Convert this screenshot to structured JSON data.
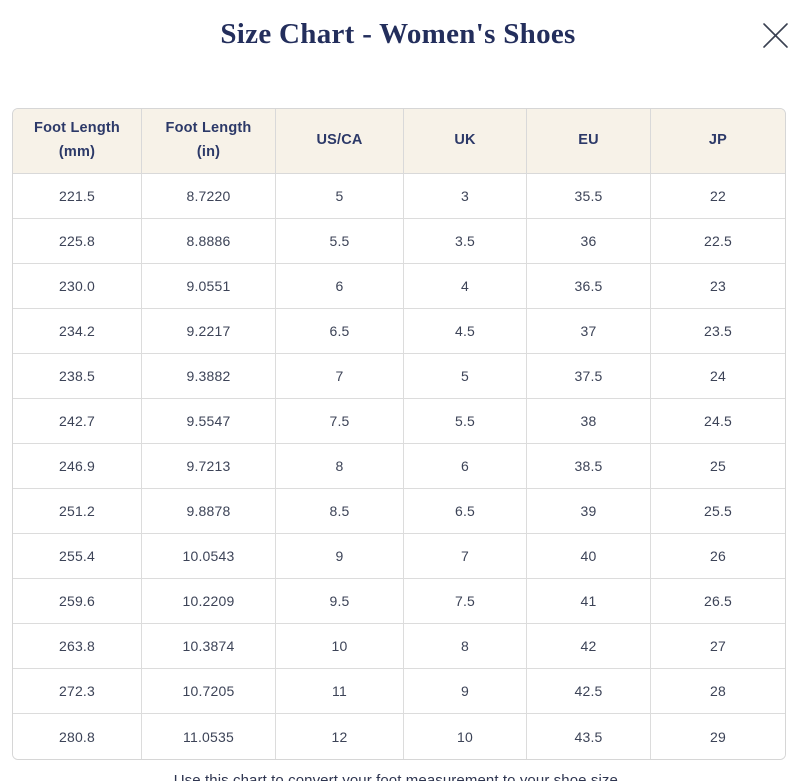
{
  "dialog": {
    "title": "Size Chart - Women's Shoes",
    "footer_note": "Use this chart to convert your foot measurement to your shoe size.",
    "close_icon": "x-icon"
  },
  "colors": {
    "title_navy": "#232e5c",
    "header_bg_cream": "#f7f2e8",
    "header_text_navy": "#2c3968",
    "cell_text": "#3c4357",
    "border": "#dcdcdc"
  },
  "table": {
    "columns": [
      "Foot Length\n(mm)",
      "Foot Length\n(in)",
      "US/CA",
      "UK",
      "EU",
      "JP"
    ],
    "rows": [
      [
        "221.5",
        "8.7220",
        "5",
        "3",
        "35.5",
        "22"
      ],
      [
        "225.8",
        "8.8886",
        "5.5",
        "3.5",
        "36",
        "22.5"
      ],
      [
        "230.0",
        "9.0551",
        "6",
        "4",
        "36.5",
        "23"
      ],
      [
        "234.2",
        "9.2217",
        "6.5",
        "4.5",
        "37",
        "23.5"
      ],
      [
        "238.5",
        "9.3882",
        "7",
        "5",
        "37.5",
        "24"
      ],
      [
        "242.7",
        "9.5547",
        "7.5",
        "5.5",
        "38",
        "24.5"
      ],
      [
        "246.9",
        "9.7213",
        "8",
        "6",
        "38.5",
        "25"
      ],
      [
        "251.2",
        "9.8878",
        "8.5",
        "6.5",
        "39",
        "25.5"
      ],
      [
        "255.4",
        "10.0543",
        "9",
        "7",
        "40",
        "26"
      ],
      [
        "259.6",
        "10.2209",
        "9.5",
        "7.5",
        "41",
        "26.5"
      ],
      [
        "263.8",
        "10.3874",
        "10",
        "8",
        "42",
        "27"
      ],
      [
        "272.3",
        "10.7205",
        "11",
        "9",
        "42.5",
        "28"
      ],
      [
        "280.8",
        "11.0535",
        "12",
        "10",
        "43.5",
        "29"
      ]
    ]
  }
}
